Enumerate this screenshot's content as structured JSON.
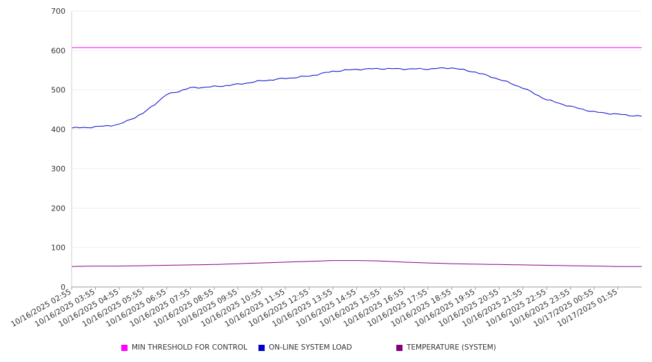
{
  "chart_data": {
    "type": "line",
    "title": "",
    "xlabel": "",
    "ylabel": "",
    "ylim": [
      0,
      700
    ],
    "y_ticks": [
      "0",
      "100",
      "200",
      "300",
      "400",
      "500",
      "600",
      "700"
    ],
    "grid": true,
    "legend_position": "bottom",
    "x_labels": [
      "10/16/2025 02:55",
      "10/16/2025 03:55",
      "10/16/2025 04:55",
      "10/16/2025 05:55",
      "10/16/2025 06:55",
      "10/16/2025 07:55",
      "10/16/2025 08:55",
      "10/16/2025 09:55",
      "10/16/2025 10:55",
      "10/16/2025 11:55",
      "10/16/2025 12:55",
      "10/16/2025 13:55",
      "10/16/2025 14:55",
      "10/16/2025 15:55",
      "10/16/2025 16:55",
      "10/16/2025 17:55",
      "10/16/2025 18:55",
      "10/16/2025 19:55",
      "10/16/2025 20:55",
      "10/16/2025 21:55",
      "10/16/2025 22:55",
      "10/16/2025 23:55",
      "10/17/2025 00:55",
      "10/17/2025 01:55"
    ],
    "x_end": "10/17/2025 02:55",
    "series": [
      {
        "name": "MIN THRESHOLD FOR CONTROL",
        "color": "#ff00ff",
        "values": [
          607,
          607,
          607,
          607,
          607,
          607,
          607,
          607,
          607,
          607,
          607,
          607,
          607,
          607,
          607,
          607,
          607,
          607,
          607,
          607,
          607,
          607,
          607,
          607,
          607
        ]
      },
      {
        "name": "ON-LINE SYSTEM LOAD",
        "color": "#0000cc",
        "values": [
          403,
          406,
          412,
          440,
          488,
          505,
          508,
          514,
          523,
          529,
          535,
          547,
          552,
          554,
          553,
          553,
          556,
          545,
          527,
          505,
          475,
          458,
          444,
          438,
          433
        ]
      },
      {
        "name": "TEMPERATURE (SYSTEM)",
        "color": "#800080",
        "values": [
          52,
          53,
          53,
          54,
          55,
          56,
          57,
          59,
          61,
          63,
          65,
          67,
          67,
          66,
          63,
          61,
          59,
          58,
          57,
          56,
          55,
          54,
          53,
          52,
          52
        ]
      }
    ]
  }
}
